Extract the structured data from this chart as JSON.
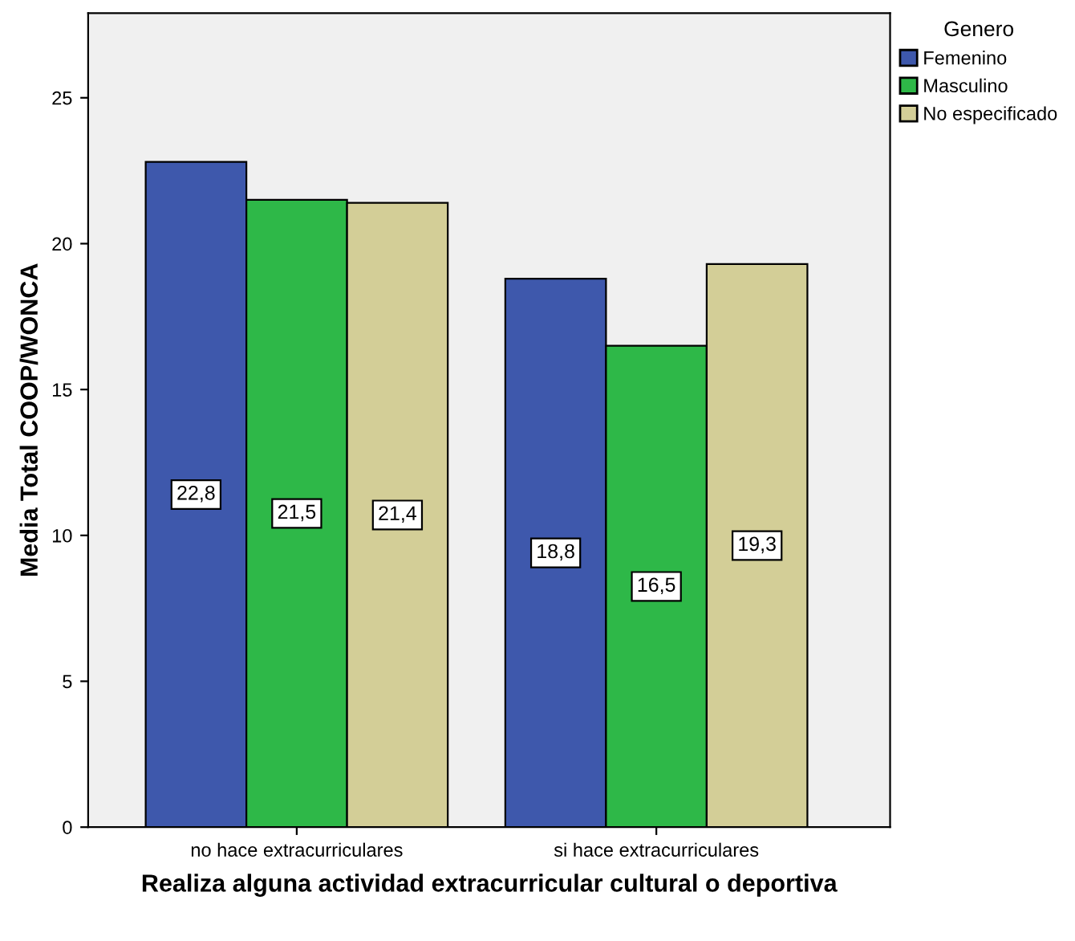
{
  "chart_data": {
    "type": "bar",
    "xlabel": "Realiza alguna actividad extracurricular cultural o deportiva",
    "ylabel": "Media Total COOP/WONCA",
    "legend_title": "Genero",
    "legend": "right",
    "categories": [
      "no hace extracurriculares",
      "si hace extracurriculares"
    ],
    "series": [
      {
        "name": "Femenino",
        "color": "#3e58ac",
        "values": [
          22.8,
          18.8
        ],
        "value_labels": [
          "22,8",
          "18,8"
        ]
      },
      {
        "name": "Masculino",
        "color": "#2eb848",
        "values": [
          21.5,
          16.5
        ],
        "value_labels": [
          "21,5",
          "16,5"
        ]
      },
      {
        "name": "No especificado",
        "color": "#d3ce97",
        "values": [
          21.4,
          19.3
        ],
        "value_labels": [
          "21,4",
          "19,3"
        ]
      }
    ],
    "ylim": [
      0,
      27.9
    ],
    "yticks": [
      0,
      5,
      10,
      15,
      20,
      25
    ],
    "grid": false
  }
}
